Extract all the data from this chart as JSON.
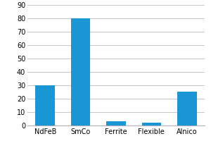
{
  "categories": [
    "NdFeB",
    "SmCo",
    "Ferrite",
    "Flexible",
    "Alnico"
  ],
  "values": [
    30,
    80,
    3,
    2,
    25
  ],
  "bar_color": "#1a96d4",
  "ylim": [
    0,
    90
  ],
  "yticks": [
    0,
    10,
    20,
    30,
    40,
    50,
    60,
    70,
    80,
    90
  ],
  "grid_color": "#c8c8d0",
  "background_color": "#ffffff",
  "bar_width": 0.55,
  "tick_fontsize": 7,
  "spine_color": "#b0b0b8"
}
